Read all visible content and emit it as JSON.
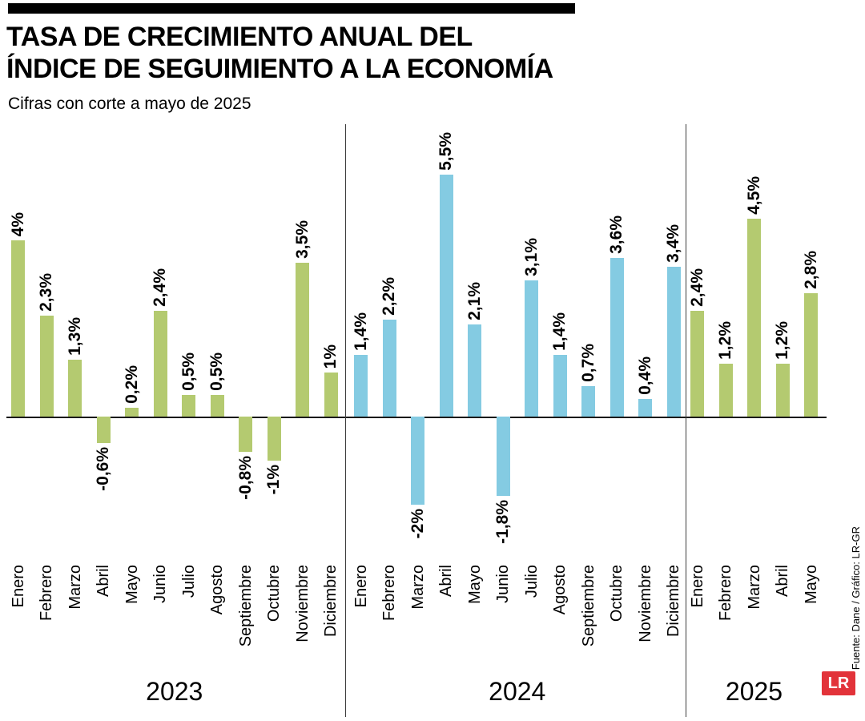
{
  "header": {
    "title_lines": [
      "TASA DE CRECIMIENTO ANUAL DEL",
      "ÍNDICE DE SEGUIMIENTO A LA ECONOMÍA"
    ],
    "subtitle": "Cifras con corte a mayo de 2025"
  },
  "footer": {
    "source_credit": "Fuente: Dane / Gráfico: LR-GR",
    "logo_text": "LR"
  },
  "colors": {
    "bar_green": "#b4ca70",
    "bar_blue": "#84cbe2",
    "logo_red": "#e2333a",
    "axis": "#1a1a1a"
  },
  "chart_data": {
    "type": "bar",
    "title": "TASA DE CRECIMIENTO ANUAL DEL ÍNDICE DE SEGUIMIENTO A LA ECONOMÍA",
    "subtitle": "Cifras con corte a mayo de 2025",
    "unit": "%",
    "ylim": [
      -2.2,
      5.8
    ],
    "grid": false,
    "value_labels_rotated": true,
    "month_labels_rotated": true,
    "groups": [
      {
        "year": "2023",
        "color_key": "bar_green",
        "categories": [
          "Enero",
          "Febrero",
          "Marzo",
          "Abril",
          "Mayo",
          "Junio",
          "Julio",
          "Agosto",
          "Septiembre",
          "Octubre",
          "Noviembre",
          "Diciembre"
        ],
        "values": [
          4,
          2.3,
          1.3,
          -0.6,
          0.2,
          2.4,
          0.5,
          0.5,
          -0.8,
          -1,
          3.5,
          1
        ],
        "value_labels": [
          "4%",
          "2,3%",
          "1,3%",
          "-0,6%",
          "0,2%",
          "2,4%",
          "0,5%",
          "0,5%",
          "-0,8%",
          "-1%",
          "3,5%",
          "1%"
        ]
      },
      {
        "year": "2024",
        "color_key": "bar_blue",
        "categories": [
          "Enero",
          "Febrero",
          "Marzo",
          "Abril",
          "Mayo",
          "Junio",
          "Julio",
          "Agosto",
          "Septiembre",
          "Octubre",
          "Noviembre",
          "Diciembre"
        ],
        "values": [
          1.4,
          2.2,
          -2,
          5.5,
          2.1,
          -1.8,
          3.1,
          1.4,
          0.7,
          3.6,
          0.4,
          3.4
        ],
        "value_labels": [
          "1,4%",
          "2,2%",
          "-2%",
          "5,5%",
          "2,1%",
          "-1,8%",
          "3,1%",
          "1,4%",
          "0,7%",
          "3,6%",
          "0,4%",
          "3,4%"
        ]
      },
      {
        "year": "2025",
        "color_key": "bar_green",
        "categories": [
          "Enero",
          "Febrero",
          "Marzo",
          "Abril",
          "Mayo"
        ],
        "values": [
          2.4,
          1.2,
          4.5,
          1.2,
          2.8
        ],
        "value_labels": [
          "2,4%",
          "1,2%",
          "4,5%",
          "1,2%",
          "2,8%"
        ]
      }
    ]
  }
}
